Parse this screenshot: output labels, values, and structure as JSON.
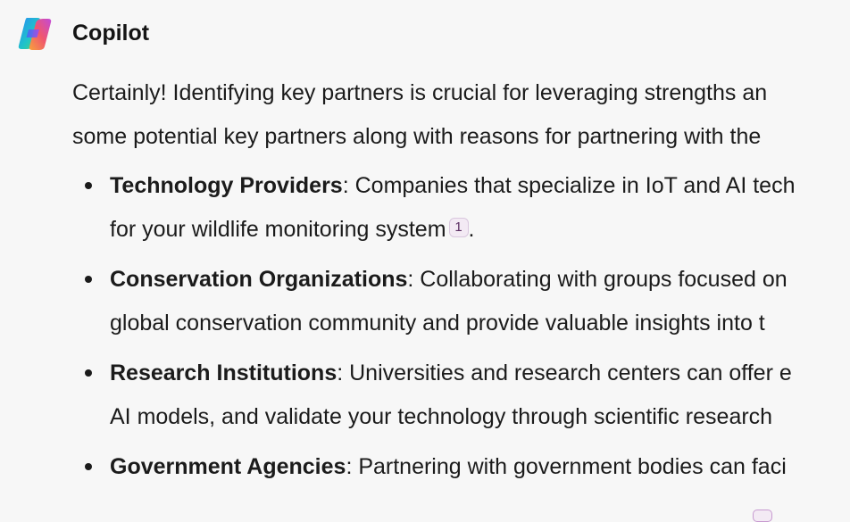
{
  "app": {
    "sender_name": "Copilot",
    "logo_icon": "copilot-logo-icon"
  },
  "message": {
    "intro_lines": [
      "Certainly! Identifying key partners is crucial for leveraging strengths an",
      "some potential key partners along with reasons for partnering with the"
    ],
    "items": [
      {
        "term": "Technology Providers",
        "lines": [
          ": Companies that specialize in IoT and AI tech",
          "for your wildlife monitoring system"
        ],
        "citation": "1",
        "trailing": "."
      },
      {
        "term": "Conservation Organizations",
        "lines": [
          ": Collaborating with groups focused on",
          "global conservation community and provide valuable insights into t"
        ]
      },
      {
        "term": "Research Institutions",
        "lines": [
          ": Universities and research centers can offer e",
          "AI models, and validate your technology through scientific research"
        ]
      },
      {
        "term": "Government Agencies",
        "lines": [
          ": Partnering with government bodies can faci"
        ]
      }
    ]
  },
  "colors": {
    "background": "#f7f7f7",
    "text": "#1b1b1b",
    "citation_bg": "#f3eaf4",
    "citation_text": "#5b2f63"
  }
}
